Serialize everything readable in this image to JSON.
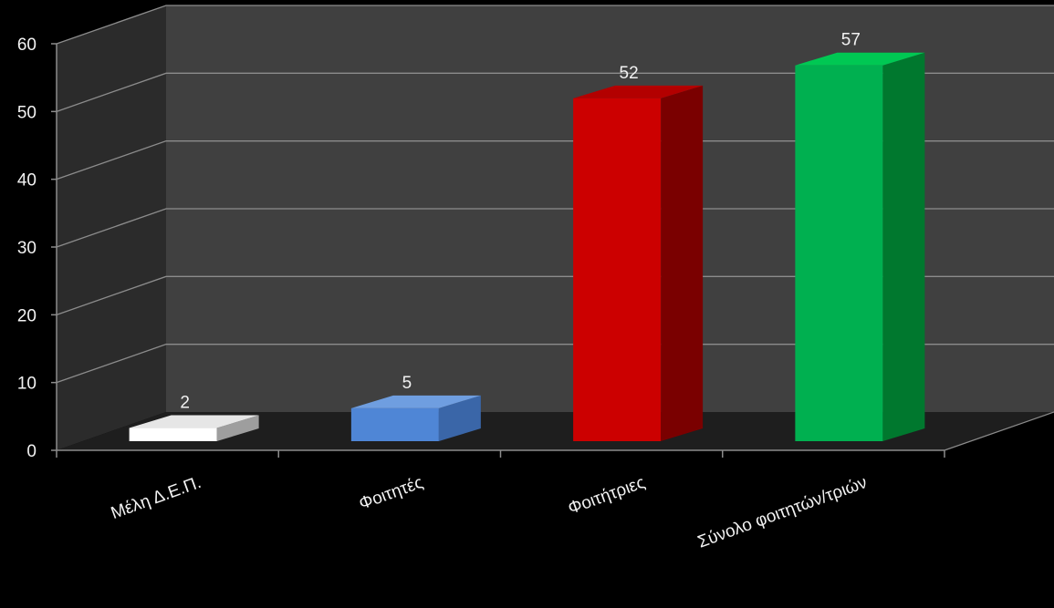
{
  "chart_data": {
    "type": "bar",
    "categories": [
      "Μέλη Δ.Ε.Π.",
      "Φοιτητές",
      "Φοιτήτριες",
      "Σύνολο φοιτητών/τριών"
    ],
    "values": [
      2,
      5,
      52,
      57
    ],
    "value_labels": [
      "2",
      "5",
      "52",
      "57"
    ],
    "title": "",
    "xlabel": "",
    "ylabel": "",
    "ylim": [
      0,
      60
    ],
    "yticks": [
      0,
      10,
      20,
      30,
      40,
      50,
      60
    ],
    "grid": true,
    "legend": "none",
    "style": "3d-column",
    "colors": {
      "bars": [
        "#ffffff",
        "#4f86d6",
        "#cc0000",
        "#00b050"
      ],
      "bar_tops": [
        "#e6e6e6",
        "#6f9ee0",
        "#b30000",
        "#00c853"
      ],
      "bar_sides": [
        "#9e9e9e",
        "#3a66a8",
        "#7a0000",
        "#00782e"
      ],
      "background": "#000000",
      "back_wall": "#404040",
      "side_wall": "#2b2b2b",
      "floor": "#1e1e1e",
      "gridline": "#8c8c8c",
      "text": "#f2f2f2"
    }
  }
}
